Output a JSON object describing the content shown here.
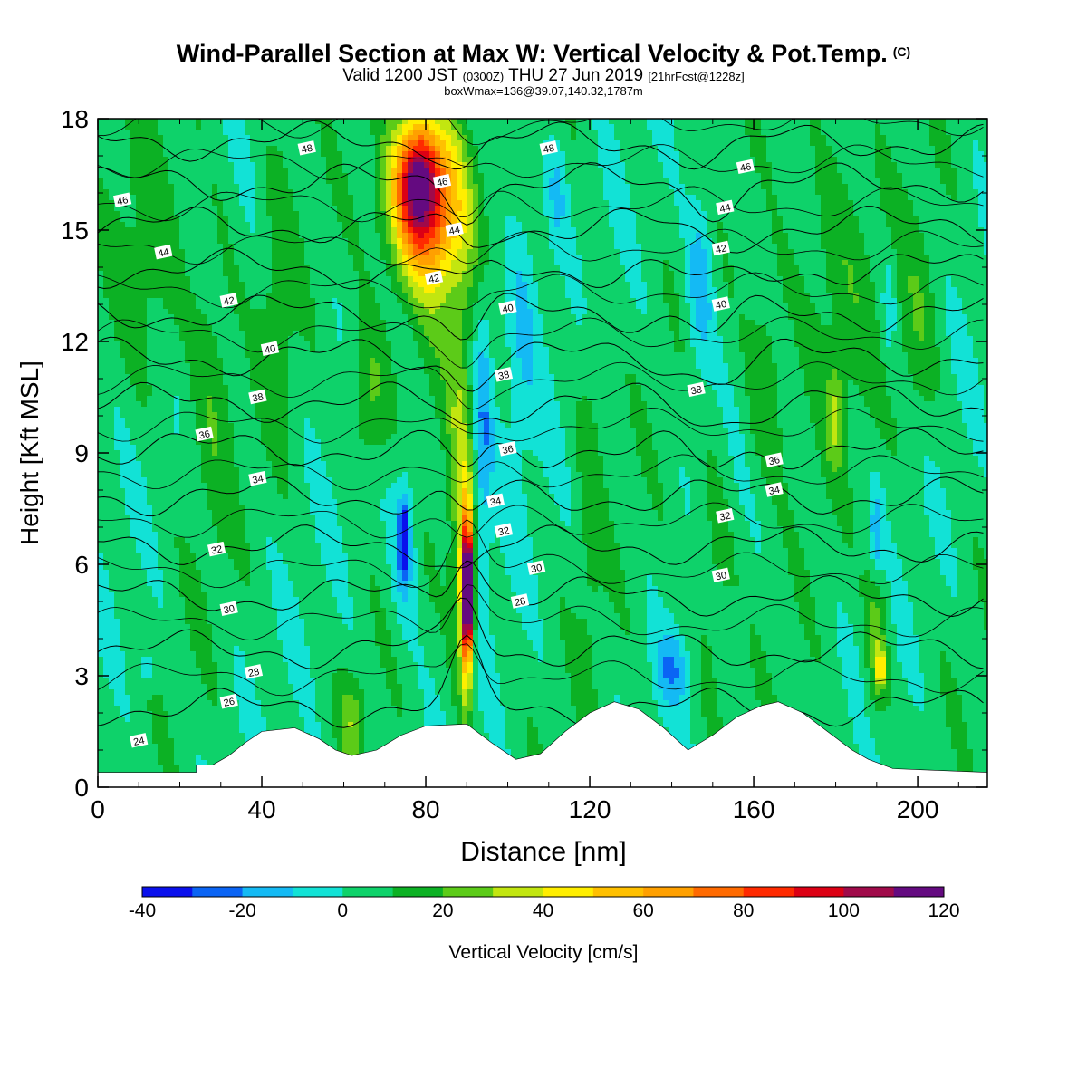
{
  "chart_data": {
    "type": "heatmap",
    "title": "Wind-Parallel Section at Max W: Vertical Velocity & Pot.Temp.",
    "title_mark": "(C)",
    "subtitle_main": "Valid 1200 JST",
    "subtitle_z": "(0300Z)",
    "subtitle_date": "THU 27 Jun 2019",
    "subtitle_fcst": "[21hrFcst@1228z]",
    "box_info": "boxWmax=136@39.07,140.32,1787m",
    "xlabel": "Distance [nm]",
    "ylabel": "Height [Kft MSL]",
    "xlim": [
      0,
      217
    ],
    "ylim": [
      0,
      18
    ],
    "x_ticks": [
      {
        "value": 0,
        "label": "0"
      },
      {
        "value": 40,
        "label": "40"
      },
      {
        "value": 80,
        "label": "80"
      },
      {
        "value": 120,
        "label": "120"
      },
      {
        "value": 160,
        "label": "160"
      },
      {
        "value": 200,
        "label": "200"
      }
    ],
    "y_ticks": [
      {
        "value": 0,
        "label": "0"
      },
      {
        "value": 3,
        "label": "3"
      },
      {
        "value": 6,
        "label": "6"
      },
      {
        "value": 9,
        "label": "9"
      },
      {
        "value": 12,
        "label": "12"
      },
      {
        "value": 15,
        "label": "15"
      },
      {
        "value": 18,
        "label": "18"
      }
    ],
    "colorbar": {
      "label": "Vertical Velocity [cm/s]",
      "bounds": [
        -40,
        -30,
        -20,
        -10,
        0,
        10,
        20,
        30,
        40,
        50,
        60,
        70,
        80,
        90,
        100,
        110,
        120
      ],
      "tick_labels": [
        "-40",
        "-20",
        "0",
        "20",
        "40",
        "60",
        "80",
        "100",
        "120"
      ],
      "colors": [
        "#0a10ec",
        "#0a64f4",
        "#14baf4",
        "#12e2d6",
        "#0ed26a",
        "#0cb124",
        "#5ccb18",
        "#c2e610",
        "#ffee00",
        "#ffc000",
        "#ffa000",
        "#ff6a00",
        "#ff2a00",
        "#dc0014",
        "#a00a4a",
        "#640a80"
      ]
    },
    "terrain": {
      "color": "#ffffff",
      "points": [
        [
          0,
          0.4
        ],
        [
          24,
          0.4
        ],
        [
          24,
          0.6
        ],
        [
          28,
          0.6
        ],
        [
          32,
          0.85
        ],
        [
          36,
          1.2
        ],
        [
          40,
          1.5
        ],
        [
          48,
          1.6
        ],
        [
          54,
          1.3
        ],
        [
          58,
          1.0
        ],
        [
          62,
          0.85
        ],
        [
          68,
          1.0
        ],
        [
          74,
          1.4
        ],
        [
          80,
          1.65
        ],
        [
          90,
          1.7
        ],
        [
          96,
          1.2
        ],
        [
          102,
          0.75
        ],
        [
          108,
          0.9
        ],
        [
          114,
          1.5
        ],
        [
          120,
          2.0
        ],
        [
          126,
          2.3
        ],
        [
          132,
          2.1
        ],
        [
          138,
          1.6
        ],
        [
          144,
          1.0
        ],
        [
          150,
          1.4
        ],
        [
          156,
          1.9
        ],
        [
          162,
          2.2
        ],
        [
          166,
          2.3
        ],
        [
          172,
          2.0
        ],
        [
          178,
          1.5
        ],
        [
          184,
          1.0
        ],
        [
          188,
          0.75
        ],
        [
          194,
          0.5
        ],
        [
          217,
          0.4
        ]
      ]
    },
    "w_features": [
      {
        "x": 88,
        "y": 8,
        "w": 20,
        "rx": 3.4,
        "ry": 6.2
      },
      {
        "x": 90,
        "y": 5.4,
        "w": 40,
        "rx": 2.4,
        "ry": 3.8
      },
      {
        "x": 90,
        "y": 5.2,
        "w": 70,
        "rx": 1.7,
        "ry": 2.6
      },
      {
        "x": 90.3,
        "y": 5.3,
        "w": 100,
        "rx": 1.0,
        "ry": 1.5
      },
      {
        "x": 84,
        "y": 14.5,
        "w": 15,
        "rx": 14,
        "ry": 5
      },
      {
        "x": 80,
        "y": 16,
        "w": 30,
        "rx": 12,
        "ry": 2.8
      },
      {
        "x": 80,
        "y": 15.5,
        "w": 45,
        "rx": 10,
        "ry": 2.5
      },
      {
        "x": 78,
        "y": 16.5,
        "w": 55,
        "rx": 6,
        "ry": 1.8
      },
      {
        "x": 75,
        "y": 6.7,
        "w": -20,
        "rx": 4.0,
        "ry": 2.8
      },
      {
        "x": 74.6,
        "y": 6.7,
        "w": -40,
        "rx": 1.3,
        "ry": 1.2
      },
      {
        "x": 94,
        "y": 10,
        "w": -25,
        "rx": 3.0,
        "ry": 5
      },
      {
        "x": 103,
        "y": 12.5,
        "w": -15,
        "rx": 6,
        "ry": 5
      },
      {
        "x": 112,
        "y": 16,
        "w": -15,
        "rx": 3,
        "ry": 2
      },
      {
        "x": 147,
        "y": 13.5,
        "w": -20,
        "rx": 4,
        "ry": 3.2
      },
      {
        "x": 190,
        "y": 6.8,
        "w": -20,
        "rx": 2,
        "ry": 1.6
      },
      {
        "x": 193,
        "y": 13,
        "w": -15,
        "rx": 2,
        "ry": 1.8
      },
      {
        "x": 140,
        "y": 3.2,
        "w": -20,
        "rx": 5,
        "ry": 1.3
      },
      {
        "x": 12,
        "y": 3.2,
        "w": -15,
        "rx": 3,
        "ry": 0.6
      },
      {
        "x": 13,
        "y": 14,
        "w": 12,
        "rx": 11,
        "ry": 4.5
      },
      {
        "x": 28,
        "y": 11,
        "w": 12,
        "rx": 7,
        "ry": 6
      },
      {
        "x": 44,
        "y": 13,
        "w": 12,
        "rx": 5,
        "ry": 5
      },
      {
        "x": 180,
        "y": 14,
        "w": 12,
        "rx": 14,
        "ry": 5
      },
      {
        "x": 163,
        "y": 11,
        "w": 15,
        "rx": 6,
        "ry": 3.5
      },
      {
        "x": 180,
        "y": 10,
        "w": 22,
        "rx": 3,
        "ry": 1.8
      },
      {
        "x": 150,
        "y": 5.5,
        "w": 12,
        "rx": 6,
        "ry": 4
      },
      {
        "x": 190,
        "y": 4,
        "w": 22,
        "rx": 3.5,
        "ry": 2.5
      },
      {
        "x": 191,
        "y": 3.2,
        "w": 40,
        "rx": 1.2,
        "ry": 0.6
      },
      {
        "x": 62,
        "y": 1.8,
        "w": 20,
        "rx": 4,
        "ry": 1.5
      },
      {
        "x": 66,
        "y": 10.5,
        "w": 20,
        "rx": 6,
        "ry": 2.5
      },
      {
        "x": 120,
        "y": 8,
        "w": 10,
        "rx": 4,
        "ry": 7
      },
      {
        "x": 200,
        "y": 12,
        "w": 12,
        "rx": 6,
        "ry": 4
      }
    ],
    "isentropes": [
      {
        "theta": 24,
        "label_x": 10
      },
      {
        "theta": 26,
        "label_x": 32
      },
      {
        "theta": 28,
        "label_x": 38
      },
      {
        "theta": 30,
        "label_x": 32
      },
      {
        "theta": 32,
        "label_x": 29
      },
      {
        "theta": 34,
        "label_x": 39
      },
      {
        "theta": 36,
        "label_x": 26
      },
      {
        "theta": 38,
        "label_x": 39
      },
      {
        "theta": 40,
        "label_x": 42
      },
      {
        "theta": 42,
        "label_x": 32
      },
      {
        "theta": 44,
        "label_x": 16
      },
      {
        "theta": 46,
        "label_x": 6
      },
      {
        "theta": 48,
        "label_x": 51
      }
    ],
    "isentrope_labels": [
      {
        "theta": "24",
        "x": 10,
        "y": 1.25
      },
      {
        "theta": "26",
        "x": 32,
        "y": 2.3
      },
      {
        "theta": "28",
        "x": 38,
        "y": 3.1
      },
      {
        "theta": "30",
        "x": 32,
        "y": 4.8
      },
      {
        "theta": "32",
        "x": 29,
        "y": 6.4
      },
      {
        "theta": "34",
        "x": 39,
        "y": 8.3
      },
      {
        "theta": "36",
        "x": 26,
        "y": 9.5
      },
      {
        "theta": "38",
        "x": 39,
        "y": 10.5
      },
      {
        "theta": "40",
        "x": 42,
        "y": 11.8
      },
      {
        "theta": "42",
        "x": 32,
        "y": 13.1
      },
      {
        "theta": "44",
        "x": 16,
        "y": 14.4
      },
      {
        "theta": "46",
        "x": 6,
        "y": 15.8
      },
      {
        "theta": "48",
        "x": 51,
        "y": 17.2
      },
      {
        "theta": "46",
        "x": 84,
        "y": 16.3
      },
      {
        "theta": "44",
        "x": 87,
        "y": 15.0
      },
      {
        "theta": "42",
        "x": 82,
        "y": 13.7
      },
      {
        "theta": "40",
        "x": 100,
        "y": 12.9
      },
      {
        "theta": "38",
        "x": 99,
        "y": 11.1
      },
      {
        "theta": "36",
        "x": 100,
        "y": 9.1
      },
      {
        "theta": "34",
        "x": 97,
        "y": 7.7
      },
      {
        "theta": "32",
        "x": 99,
        "y": 6.9
      },
      {
        "theta": "30",
        "x": 107,
        "y": 5.9
      },
      {
        "theta": "28",
        "x": 103,
        "y": 5.0
      },
      {
        "theta": "48",
        "x": 110,
        "y": 17.2
      },
      {
        "theta": "46",
        "x": 158,
        "y": 16.7
      },
      {
        "theta": "44",
        "x": 153,
        "y": 15.6
      },
      {
        "theta": "42",
        "x": 152,
        "y": 14.5
      },
      {
        "theta": "40",
        "x": 152,
        "y": 13.0
      },
      {
        "theta": "38",
        "x": 146,
        "y": 10.7
      },
      {
        "theta": "36",
        "x": 165,
        "y": 8.8
      },
      {
        "theta": "34",
        "x": 165,
        "y": 8.0
      },
      {
        "theta": "32",
        "x": 153,
        "y": 7.3
      },
      {
        "theta": "30",
        "x": 152,
        "y": 5.7
      }
    ]
  }
}
